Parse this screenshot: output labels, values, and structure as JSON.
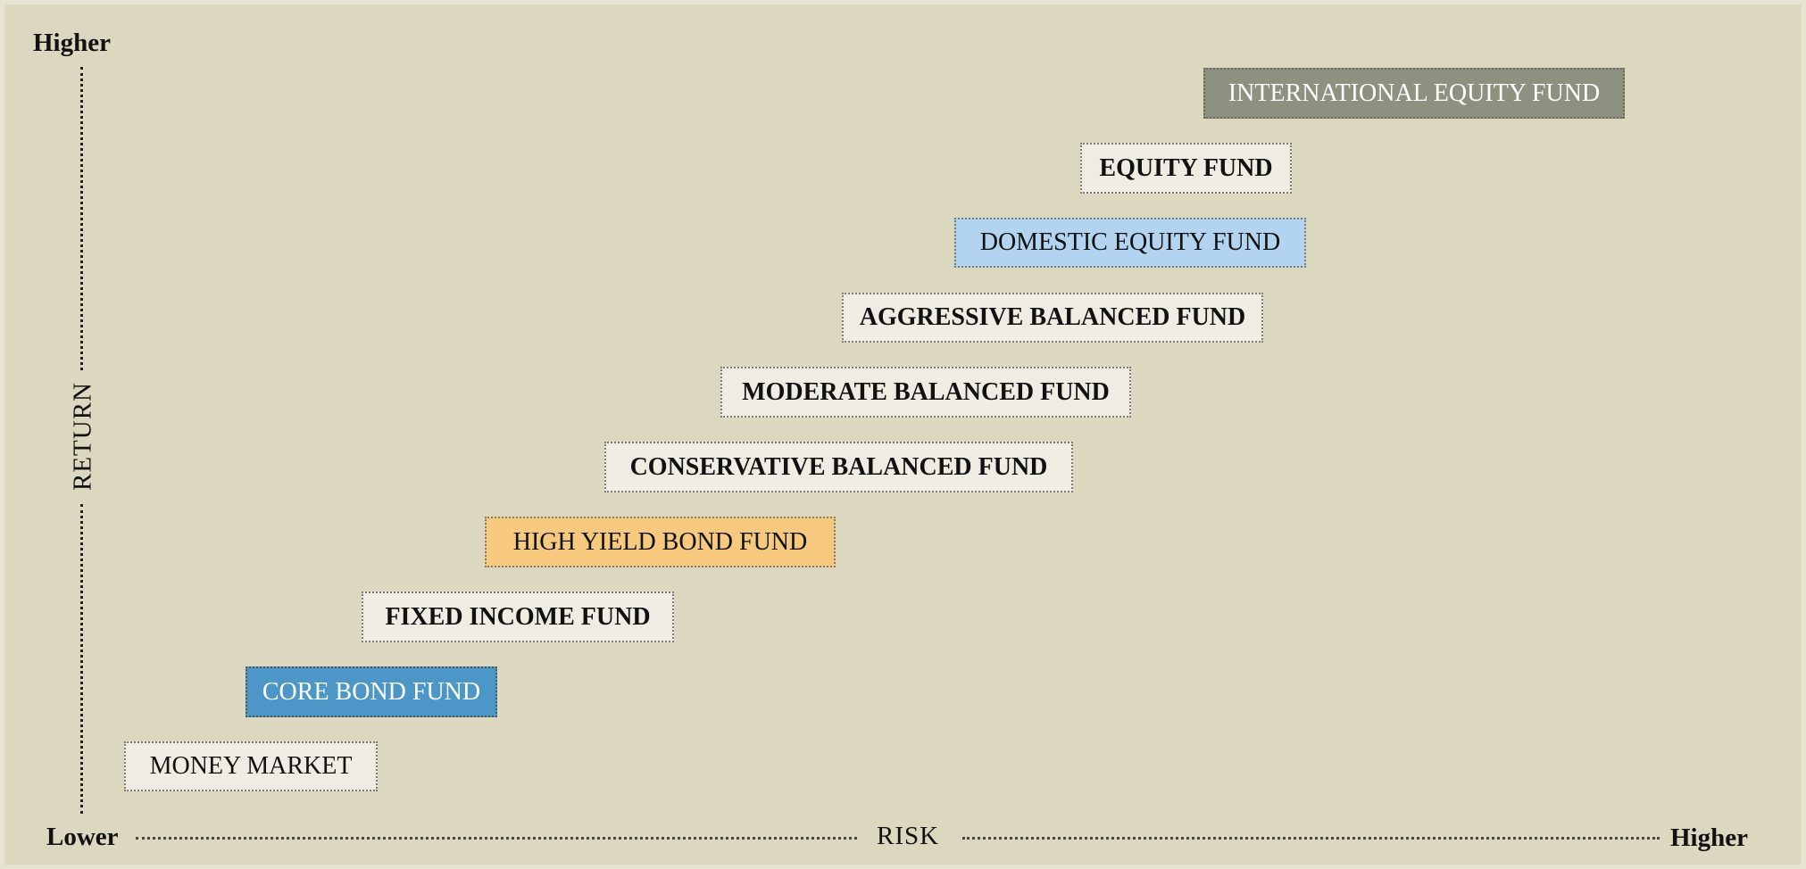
{
  "axes": {
    "y_top": "Higher",
    "y_label": "RETURN",
    "x_left": "Lower",
    "x_label": "RISK",
    "x_right": "Higher"
  },
  "funds": [
    {
      "label": "INTERNATIONAL EQUITY FUND"
    },
    {
      "label": "EQUITY FUND"
    },
    {
      "label": "DOMESTIC EQUITY FUND"
    },
    {
      "label": "AGGRESSIVE BALANCED FUND"
    },
    {
      "label": "MODERATE BALANCED FUND"
    },
    {
      "label": "CONSERVATIVE BALANCED FUND"
    },
    {
      "label": "HIGH YIELD BOND FUND"
    },
    {
      "label": "FIXED INCOME FUND"
    },
    {
      "label": "CORE BOND FUND"
    },
    {
      "label": "MONEY MARKET"
    }
  ]
}
